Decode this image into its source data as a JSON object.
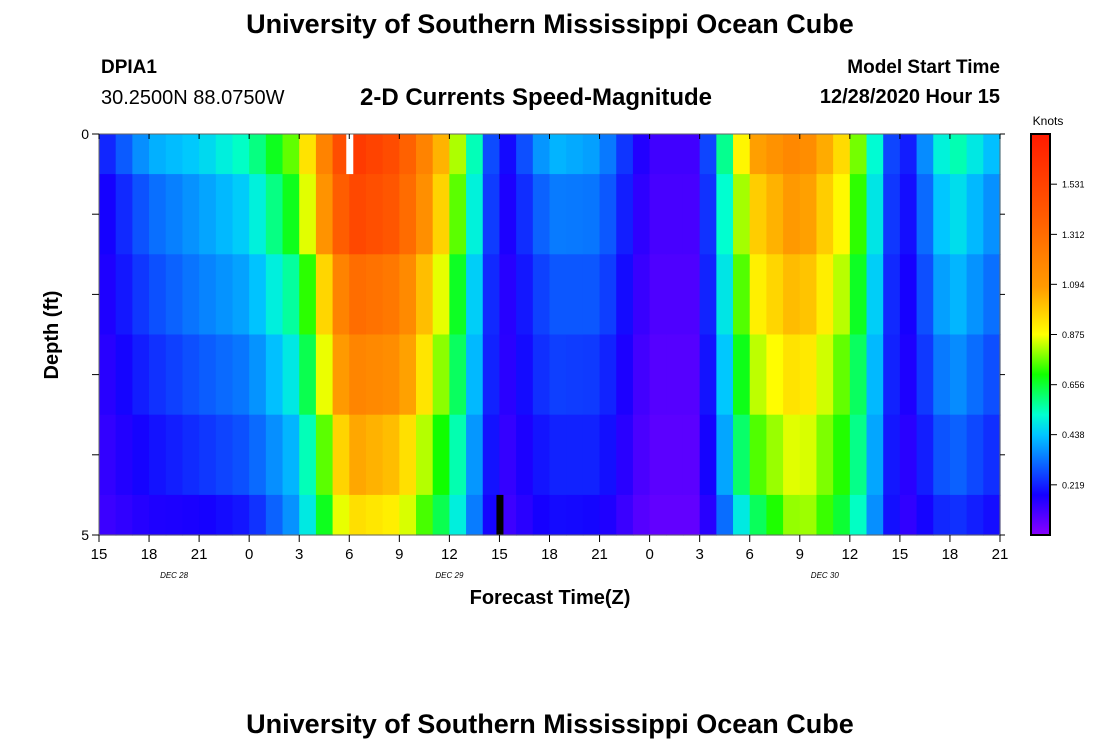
{
  "header": {
    "title": "University of Southern Mississippi Ocean Cube",
    "station": "DPIA1",
    "coords": "30.2500N 88.0750W",
    "plot_title": "2-D Currents Speed-Magnitude",
    "start_label": "Model Start Time",
    "start_value": "12/28/2020 Hour 15"
  },
  "footer": {
    "title": "University of Southern Mississippi Ocean Cube"
  },
  "chart_data": {
    "type": "heatmap",
    "title": "2-D Currents Speed-Magnitude",
    "xlabel": "Forecast Time(Z)",
    "ylabel": "Depth (ft)",
    "y_range": [
      0,
      5
    ],
    "y_tick_labels": [
      "0",
      "5"
    ],
    "x_tick_labels": [
      "15",
      "18",
      "21",
      "0",
      "3",
      "6",
      "9",
      "12",
      "15",
      "18",
      "21",
      "0",
      "3",
      "6",
      "9",
      "12",
      "15",
      "18",
      "21"
    ],
    "x_tick_hours": [
      15,
      18,
      21,
      24,
      27,
      30,
      33,
      36,
      39,
      42,
      45,
      48,
      51,
      54,
      57,
      60,
      63,
      66,
      69
    ],
    "x_range_hours": [
      15,
      69
    ],
    "date_labels": [
      {
        "text": "DEC 28",
        "hour": 19.5
      },
      {
        "text": "DEC 29",
        "hour": 36
      },
      {
        "text": "DEC 30",
        "hour": 58.5
      }
    ],
    "depth_bins": [
      0,
      0.5,
      1.5,
      2.5,
      3.5,
      4.5,
      5
    ],
    "colorbar": {
      "label": "Knots",
      "range": [
        0,
        1.75
      ],
      "ticks": [
        "0.219",
        "0.438",
        "0.656",
        "0.875",
        "1.094",
        "1.312",
        "1.531"
      ],
      "tick_values": [
        0.219,
        0.438,
        0.656,
        0.875,
        1.094,
        1.312,
        1.531
      ]
    },
    "speed_by_depth_at_hours": [
      {
        "hour": 15,
        "values": [
          0.19,
          0.15,
          0.14,
          0.13,
          0.12,
          0.11
        ]
      },
      {
        "hour": 18,
        "values": [
          0.4,
          0.31,
          0.27,
          0.23,
          0.19,
          0.16
        ]
      },
      {
        "hour": 21,
        "values": [
          0.45,
          0.38,
          0.34,
          0.29,
          0.24,
          0.17
        ]
      },
      {
        "hour": 24,
        "values": [
          0.55,
          0.46,
          0.4,
          0.34,
          0.29,
          0.21
        ]
      },
      {
        "hour": 27,
        "values": [
          0.8,
          0.72,
          0.6,
          0.52,
          0.44,
          0.4
        ]
      },
      {
        "hour": 30,
        "values": [
          1.6,
          1.52,
          1.32,
          1.2,
          1.07,
          0.95
        ]
      },
      {
        "hour": 33,
        "values": [
          1.45,
          1.4,
          1.24,
          1.14,
          1.0,
          0.9
        ]
      },
      {
        "hour": 36,
        "values": [
          0.95,
          0.88,
          0.78,
          0.72,
          0.64,
          0.58
        ]
      },
      {
        "hour": 39,
        "values": [
          0.14,
          0.13,
          0.12,
          0.12,
          0.11,
          0.1
        ]
      },
      {
        "hour": 42,
        "values": [
          0.42,
          0.34,
          0.29,
          0.26,
          0.22,
          0.19
        ]
      },
      {
        "hour": 45,
        "values": [
          0.38,
          0.33,
          0.29,
          0.25,
          0.22,
          0.18
        ]
      },
      {
        "hour": 48,
        "values": [
          0.11,
          0.1,
          0.09,
          0.08,
          0.07,
          0.06
        ]
      },
      {
        "hour": 51,
        "values": [
          0.11,
          0.1,
          0.09,
          0.08,
          0.07,
          0.06
        ]
      },
      {
        "hour": 54,
        "values": [
          1.05,
          0.95,
          0.88,
          0.8,
          0.72,
          0.58
        ]
      },
      {
        "hour": 57,
        "values": [
          1.2,
          1.12,
          1.04,
          0.96,
          0.88,
          0.84
        ]
      },
      {
        "hour": 60,
        "values": [
          0.9,
          0.84,
          0.78,
          0.72,
          0.68,
          0.62
        ]
      },
      {
        "hour": 63,
        "values": [
          0.14,
          0.13,
          0.12,
          0.12,
          0.11,
          0.11
        ]
      },
      {
        "hour": 66,
        "values": [
          0.58,
          0.5,
          0.44,
          0.38,
          0.32,
          0.25
        ]
      },
      {
        "hour": 69,
        "values": [
          0.4,
          0.34,
          0.3,
          0.26,
          0.22,
          0.18
        ]
      }
    ]
  }
}
